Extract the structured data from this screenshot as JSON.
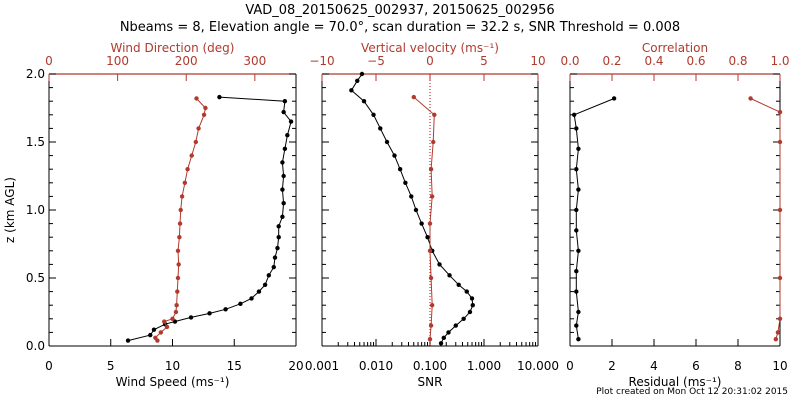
{
  "figure": {
    "title_line1": "VAD_08_20150625_002937, 20150625_002956",
    "title_line2": "Nbeams = 8, Elevation angle = 70.0°, scan duration = 32.2 s, SNR Threshold = 0.008",
    "footer": "Plot created on Mon Oct 12 20:31:02 2015",
    "colors": {
      "black": "#000000",
      "red": "#b03a2e",
      "zero_line": "#cc0000"
    }
  },
  "chart_data": [
    {
      "type": "line",
      "panel": "wind",
      "ylabel": "z (km AGL)",
      "ylim": [
        0,
        2
      ],
      "yticks": [
        0.0,
        0.5,
        1.0,
        1.5,
        2.0
      ],
      "ytick_labels": [
        "0.0",
        "0.5",
        "1.0",
        "1.5",
        "2.0"
      ],
      "bottom_axis": {
        "label": "Wind Speed (ms⁻¹)",
        "range": [
          0,
          20
        ],
        "ticks": [
          0,
          5,
          10,
          15,
          20
        ],
        "tick_labels": [
          "0",
          "5",
          "10",
          "15",
          "20"
        ]
      },
      "top_axis": {
        "label": "Wind Direction (deg)",
        "range": [
          0,
          360
        ],
        "ticks": [
          0,
          100,
          200,
          300
        ],
        "tick_labels": [
          "0",
          "100",
          "200",
          "300"
        ]
      },
      "series": [
        {
          "name": "Wind Speed",
          "axis": "bottom",
          "color": "black",
          "points": [
            [
              6.4,
              0.04
            ],
            [
              8.2,
              0.08
            ],
            [
              8.5,
              0.12
            ],
            [
              9.4,
              0.16
            ],
            [
              10.2,
              0.18
            ],
            [
              11.5,
              0.21
            ],
            [
              13.0,
              0.24
            ],
            [
              14.3,
              0.27
            ],
            [
              15.5,
              0.31
            ],
            [
              16.4,
              0.35
            ],
            [
              17.0,
              0.4
            ],
            [
              17.5,
              0.45
            ],
            [
              17.8,
              0.52
            ],
            [
              18.2,
              0.58
            ],
            [
              18.3,
              0.65
            ],
            [
              18.5,
              0.72
            ],
            [
              18.6,
              0.8
            ],
            [
              18.6,
              0.88
            ],
            [
              18.9,
              0.95
            ],
            [
              19.0,
              1.05
            ],
            [
              18.9,
              1.15
            ],
            [
              19.0,
              1.25
            ],
            [
              18.9,
              1.35
            ],
            [
              19.1,
              1.45
            ],
            [
              19.3,
              1.55
            ],
            [
              19.6,
              1.65
            ],
            [
              19.0,
              1.72
            ],
            [
              19.1,
              1.8
            ],
            [
              13.8,
              1.83
            ]
          ]
        },
        {
          "name": "Wind Direction",
          "axis": "top",
          "color": "red",
          "points": [
            [
              158,
              0.04
            ],
            [
              155,
              0.06
            ],
            [
              163,
              0.1
            ],
            [
              172,
              0.14
            ],
            [
              168,
              0.18
            ],
            [
              180,
              0.2
            ],
            [
              185,
              0.25
            ],
            [
              186,
              0.3
            ],
            [
              187,
              0.4
            ],
            [
              188,
              0.5
            ],
            [
              189,
              0.6
            ],
            [
              188,
              0.7
            ],
            [
              190,
              0.8
            ],
            [
              191,
              0.9
            ],
            [
              192,
              1.0
            ],
            [
              194,
              1.1
            ],
            [
              198,
              1.2
            ],
            [
              202,
              1.3
            ],
            [
              208,
              1.4
            ],
            [
              214,
              1.5
            ],
            [
              218,
              1.6
            ],
            [
              226,
              1.7
            ],
            [
              228,
              1.75
            ],
            [
              215,
              1.82
            ]
          ]
        }
      ]
    },
    {
      "type": "line",
      "panel": "vertical_velocity",
      "ylim": [
        0,
        2
      ],
      "bottom_axis": {
        "label": "SNR",
        "scale": "log",
        "range": [
          0.001,
          10
        ],
        "ticks": [
          0.001,
          0.01,
          0.1,
          1,
          10
        ],
        "tick_labels": [
          "0.001",
          "0.010",
          "0.100",
          "1.000",
          "10.000"
        ]
      },
      "top_axis": {
        "label": "Vertical velocity (ms⁻¹)",
        "range": [
          -10,
          10
        ],
        "ticks": [
          -10,
          -5,
          0,
          5,
          10
        ],
        "tick_labels": [
          "−10",
          "−5",
          "0",
          "5",
          "10"
        ]
      },
      "series": [
        {
          "name": "SNR",
          "axis": "bottom",
          "color": "black",
          "points": [
            [
              0.16,
              0.02
            ],
            [
              0.18,
              0.06
            ],
            [
              0.22,
              0.1
            ],
            [
              0.3,
              0.15
            ],
            [
              0.42,
              0.2
            ],
            [
              0.55,
              0.25
            ],
            [
              0.62,
              0.3
            ],
            [
              0.6,
              0.35
            ],
            [
              0.48,
              0.4
            ],
            [
              0.34,
              0.45
            ],
            [
              0.23,
              0.52
            ],
            [
              0.15,
              0.6
            ],
            [
              0.11,
              0.7
            ],
            [
              0.09,
              0.8
            ],
            [
              0.07,
              0.9
            ],
            [
              0.055,
              1.0
            ],
            [
              0.045,
              1.1
            ],
            [
              0.035,
              1.2
            ],
            [
              0.028,
              1.3
            ],
            [
              0.022,
              1.4
            ],
            [
              0.016,
              1.5
            ],
            [
              0.012,
              1.6
            ],
            [
              0.009,
              1.7
            ],
            [
              0.006,
              1.8
            ],
            [
              0.0035,
              1.88
            ],
            [
              0.0045,
              1.95
            ],
            [
              0.0055,
              2.0
            ]
          ]
        },
        {
          "name": "Vertical velocity",
          "axis": "top",
          "color": "red",
          "points": [
            [
              0.0,
              0.05
            ],
            [
              0.1,
              0.15
            ],
            [
              0.2,
              0.3
            ],
            [
              0.1,
              0.5
            ],
            [
              0.0,
              0.7
            ],
            [
              0.0,
              0.9
            ],
            [
              0.2,
              1.1
            ],
            [
              0.1,
              1.3
            ],
            [
              0.3,
              1.5
            ],
            [
              0.4,
              1.7
            ],
            [
              -1.5,
              1.83
            ]
          ]
        }
      ]
    },
    {
      "type": "line",
      "panel": "residual",
      "ylim": [
        0,
        2
      ],
      "bottom_axis": {
        "label": "Residual (ms⁻¹)",
        "range": [
          0,
          10
        ],
        "ticks": [
          0,
          2,
          4,
          6,
          8,
          10
        ],
        "tick_labels": [
          "0",
          "2",
          "4",
          "6",
          "8",
          "10"
        ]
      },
      "top_axis": {
        "label": "Correlation",
        "range": [
          0,
          1
        ],
        "ticks": [
          0,
          0.2,
          0.4,
          0.6,
          0.8,
          1.0
        ],
        "tick_labels": [
          "0.0",
          "0.2",
          "0.4",
          "0.6",
          "0.8",
          "1.0"
        ]
      },
      "series": [
        {
          "name": "Residual",
          "axis": "bottom",
          "color": "black",
          "points": [
            [
              0.4,
              0.05
            ],
            [
              0.3,
              0.15
            ],
            [
              0.4,
              0.25
            ],
            [
              0.3,
              0.4
            ],
            [
              0.3,
              0.55
            ],
            [
              0.4,
              0.7
            ],
            [
              0.3,
              0.85
            ],
            [
              0.3,
              1.0
            ],
            [
              0.4,
              1.15
            ],
            [
              0.3,
              1.3
            ],
            [
              0.4,
              1.45
            ],
            [
              0.3,
              1.6
            ],
            [
              0.2,
              1.7
            ],
            [
              2.1,
              1.82
            ]
          ]
        },
        {
          "name": "Correlation",
          "axis": "top",
          "color": "red",
          "points": [
            [
              0.98,
              0.05
            ],
            [
              0.99,
              0.1
            ],
            [
              1.0,
              0.2
            ],
            [
              1.0,
              0.5
            ],
            [
              1.0,
              1.0
            ],
            [
              1.0,
              1.5
            ],
            [
              1.0,
              1.72
            ],
            [
              0.86,
              1.82
            ]
          ]
        }
      ]
    }
  ]
}
